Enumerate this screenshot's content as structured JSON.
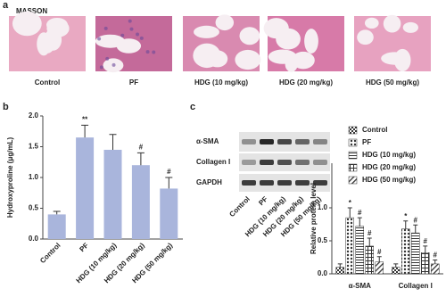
{
  "panel_a": {
    "label": "a",
    "stain": "MASSON",
    "captions": [
      "Control",
      "PF",
      "HDG (10 mg/kg)",
      "HDG (20 mg/kg)",
      "HDG (50 mg/kg)"
    ]
  },
  "panel_b": {
    "label": "b"
  },
  "panel_c": {
    "label": "c",
    "blot": {
      "rows": [
        "α-SMA",
        "Collagen I",
        "GAPDH"
      ],
      "lanes": [
        "Control",
        "PF",
        "HDG (10 mg/kg)",
        "HDG (20 mg/kg)",
        "HDG (50 mg/kg)"
      ]
    }
  },
  "chart_data": [
    {
      "type": "bar",
      "ylabel": "Hydroxyproline (μg/mL)",
      "categories": [
        "Control",
        "PF",
        "HDG (10 mg/kg)",
        "HDG (20 mg/kg)",
        "HDG (50 mg/kg)"
      ],
      "values": [
        0.4,
        1.65,
        1.45,
        1.2,
        0.82
      ],
      "errors": [
        0.05,
        0.2,
        0.25,
        0.2,
        0.18
      ],
      "markers": [
        null,
        "**",
        null,
        "#",
        "#"
      ],
      "color": "#a9b5dc",
      "ylim": [
        0,
        2.0
      ],
      "yticks": [
        {
          "value": 0,
          "label": "0.0"
        },
        {
          "value": 0.5,
          "label": "0.5"
        },
        {
          "value": 1.0,
          "label": "1.0"
        },
        {
          "value": 1.5,
          "label": "1.5"
        },
        {
          "value": 2.0,
          "label": "2.0"
        }
      ]
    },
    {
      "type": "grouped_bar",
      "ylabel": "Relative protein level",
      "categories": [
        "α-SMA",
        "Collagen I"
      ],
      "series": [
        {
          "name": "Control",
          "color": "#333",
          "pattern": "checker",
          "values": [
            0.1,
            0.1
          ],
          "errors": [
            0.05,
            0.05
          ],
          "markers": [
            null,
            null
          ]
        },
        {
          "name": "PF",
          "color": "#333",
          "pattern": "dots",
          "values": [
            0.85,
            0.68
          ],
          "errors": [
            0.15,
            0.12
          ],
          "markers": [
            "*",
            "*"
          ]
        },
        {
          "name": "HDG (10 mg/kg)",
          "color": "#333",
          "pattern": "hlines",
          "values": [
            0.72,
            0.62
          ],
          "errors": [
            0.13,
            0.12
          ],
          "markers": [
            "#",
            "#"
          ]
        },
        {
          "name": "HDG (20 mg/kg)",
          "color": "#333",
          "pattern": "grid",
          "values": [
            0.42,
            0.32
          ],
          "errors": [
            0.12,
            0.1
          ],
          "markers": [
            "#",
            "#"
          ]
        },
        {
          "name": "HDG (50 mg/kg)",
          "color": "#333",
          "pattern": "diag",
          "values": [
            0.18,
            0.15
          ],
          "errors": [
            0.08,
            0.06
          ],
          "markers": [
            "#",
            "#"
          ]
        }
      ],
      "ylim": [
        0,
        1.5
      ],
      "yticks": [
        {
          "value": 0,
          "label": "0.0"
        },
        {
          "value": 0.5,
          "label": "0.5"
        },
        {
          "value": 1.0,
          "label": "1.0"
        }
      ],
      "legend": "top-right"
    }
  ]
}
